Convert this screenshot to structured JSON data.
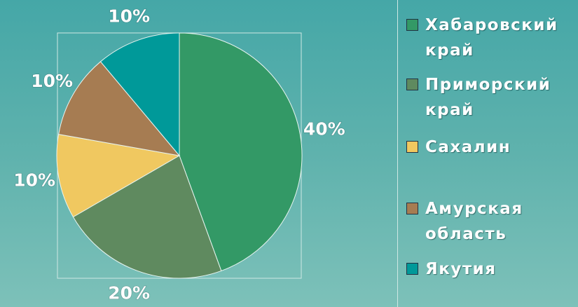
{
  "chart_data": {
    "type": "pie",
    "categories": [
      "Хабаровский край",
      "Приморский край",
      "Сахалин",
      "Амурская область",
      "Якутия"
    ],
    "values": [
      40,
      20,
      10,
      10,
      10
    ],
    "value_labels": [
      "40%",
      "20%",
      "10%",
      "10%",
      "10%"
    ],
    "colors": [
      "#339966",
      "#5f8a5f",
      "#f0c860",
      "#a67c52",
      "#009999"
    ],
    "legend": "right"
  }
}
